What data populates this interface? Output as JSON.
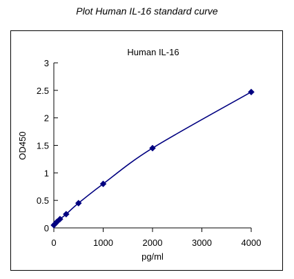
{
  "page": {
    "title": "Plot Human IL-16 standard curve"
  },
  "chart_data": {
    "type": "scatter",
    "title": "Human IL-16",
    "xlabel": "pg/ml",
    "ylabel": "OD450",
    "xlim": [
      0,
      4000
    ],
    "ylim": [
      0,
      3
    ],
    "x_ticks": [
      0,
      1000,
      2000,
      3000,
      4000
    ],
    "y_ticks": [
      0,
      0.5,
      1,
      1.5,
      2,
      2.5,
      3
    ],
    "y_tick_labels": [
      "0",
      "0.5",
      "1",
      "1.5",
      "2",
      "2.5",
      "3"
    ],
    "grid": false,
    "legend": "none",
    "series": [
      {
        "x": [
          0,
          31.25,
          62.5,
          125,
          250,
          500,
          1000,
          2000,
          4000
        ],
        "y": [
          0.05,
          0.08,
          0.11,
          0.16,
          0.25,
          0.45,
          0.8,
          1.45,
          2.47
        ],
        "marker": "diamond",
        "line": "smooth"
      }
    ],
    "colors": {
      "series": "#000080",
      "axis": "#000000"
    }
  }
}
